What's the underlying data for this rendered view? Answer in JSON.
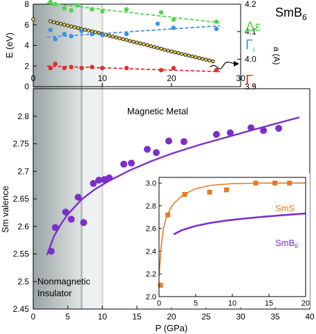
{
  "colors": {
    "green": "#4fd64a",
    "blue": "#3e8fe6",
    "red": "#e62a2a",
    "black_points": "#222222",
    "lattice_fill": "#f0d44a",
    "purple": "#7b2fc9",
    "orange": "#e57a24",
    "shade_dark": "#9aa4a4",
    "shade_light": "#eef1f1"
  },
  "chart_data": [
    {
      "id": "top",
      "type": "scatter",
      "title": "SmB6",
      "title_main": "SmB",
      "title_sub": "6",
      "xlim": [
        0,
        30
      ],
      "xticks": [
        "0",
        "10",
        "20",
        "30"
      ],
      "ylim": [
        0,
        8
      ],
      "yticks": [
        "0",
        "2",
        "4",
        "6",
        "8"
      ],
      "ylabel": "E (eV)",
      "y2lim": [
        3.9,
        4.2
      ],
      "y2ticks": [
        "3.9",
        "4.0",
        "4.1",
        "4.2"
      ],
      "y2label": "a (A)",
      "series": [
        {
          "name": "Δε",
          "label_main": "Δε",
          "label_sub": "",
          "color": "green",
          "x": [
            2.5,
            3.2,
            4.5,
            5.5,
            6.5,
            8.5,
            10,
            13.5,
            18.5,
            20.3,
            26.5
          ],
          "y": [
            8.2,
            8.0,
            7.6,
            7.4,
            7.9,
            7.5,
            7.3,
            7.5,
            7.2,
            6.5,
            6.3
          ],
          "fit": [
            [
              2,
              8.1
            ],
            [
              27,
              6.2
            ]
          ]
        },
        {
          "name": "Γi",
          "label_main": "Γ",
          "label_sub": "i",
          "color": "blue",
          "x": [
            2.5,
            3.2,
            4.5,
            5.5,
            7,
            8.5,
            10,
            13.5,
            18,
            20.3,
            26.5
          ],
          "y": [
            5.5,
            4.6,
            5.1,
            4.9,
            5.4,
            5.1,
            5.0,
            5.1,
            6.1,
            5.7,
            5.6
          ],
          "fit": [
            [
              2,
              4.8
            ],
            [
              27,
              5.9
            ]
          ]
        },
        {
          "name": "Γt",
          "label_main": "Γ",
          "label_sub": "t",
          "color": "red",
          "x": [
            2.5,
            3.2,
            4.5,
            5.5,
            7,
            8.5,
            10,
            13.5,
            18.5,
            20.3,
            26.5
          ],
          "y": [
            1.8,
            2.2,
            1.8,
            1.9,
            1.8,
            1.9,
            1.8,
            1.8,
            1.6,
            1.8,
            1.6
          ],
          "fit": [
            [
              2,
              2.0
            ],
            [
              27,
              1.45
            ]
          ]
        }
      ],
      "lattice": {
        "name": "a (A)",
        "axis": "right",
        "color": "black_points",
        "x": [
          0,
          2.5,
          3,
          3.5,
          4,
          4.5,
          5,
          5.5,
          6,
          6.5,
          7,
          7.5,
          8,
          8.5,
          9,
          9.5,
          10,
          10.5,
          11,
          11.5,
          12,
          12.5,
          13,
          13.5,
          14,
          14.5,
          15,
          15.5,
          16,
          16.5,
          17,
          17.5,
          18,
          18.5,
          19,
          19.5,
          20,
          20.5,
          21,
          21.5,
          22,
          22.5,
          23,
          23.5,
          24,
          24.5,
          25,
          25.5,
          26
        ],
        "y": [
          4.145,
          4.138,
          4.134,
          4.131,
          4.128,
          4.125,
          4.122,
          4.119,
          4.116,
          4.113,
          4.11,
          4.107,
          4.104,
          4.101,
          4.098,
          4.095,
          4.092,
          4.089,
          4.085,
          4.082,
          4.079,
          4.076,
          4.073,
          4.07,
          4.066,
          4.063,
          4.06,
          4.057,
          4.054,
          4.051,
          4.047,
          4.044,
          4.041,
          4.038,
          4.034,
          4.031,
          4.028,
          4.025,
          4.022,
          4.019,
          4.016,
          4.013,
          4.01,
          4.007,
          4.004,
          4.001,
          3.998,
          3.995,
          3.992
        ]
      }
    },
    {
      "id": "main",
      "type": "scatter",
      "xlim": [
        0,
        40
      ],
      "xticks": [
        "0",
        "5",
        "10",
        "15",
        "20",
        "25",
        "30",
        "35",
        "40"
      ],
      "xlabel": "P (GPa)",
      "ylim": [
        2.45,
        2.85
      ],
      "yticks": [
        "2.45",
        "2.5",
        "2.55",
        "2.6",
        "2.65",
        "2.7",
        "2.75",
        "2.8"
      ],
      "ylabel": "Sm valence",
      "series": [
        {
          "name": "SmB6",
          "color": "purple",
          "x": [
            2.6,
            3.2,
            4.7,
            5.5,
            6.5,
            7.3,
            8.7,
            9.5,
            10.3,
            11.0,
            13.1,
            14.2,
            16.5,
            17.8,
            19.6,
            21.8,
            26.5,
            28.5,
            31.5,
            33.3,
            35.5
          ],
          "y": [
            2.555,
            2.598,
            2.626,
            2.613,
            2.653,
            2.607,
            2.678,
            2.684,
            2.685,
            2.688,
            2.713,
            2.715,
            2.74,
            2.734,
            2.755,
            2.754,
            2.767,
            2.77,
            2.779,
            2.774,
            2.778
          ],
          "fit": [
            [
              2,
              2.548
            ],
            [
              3,
              2.582
            ],
            [
              4,
              2.604
            ],
            [
              5,
              2.622
            ],
            [
              7,
              2.649
            ],
            [
              9,
              2.668
            ],
            [
              11,
              2.683
            ],
            [
              14,
              2.702
            ],
            [
              17,
              2.718
            ],
            [
              20,
              2.732
            ],
            [
              24,
              2.748
            ],
            [
              28,
              2.762
            ],
            [
              32,
              2.776
            ],
            [
              37,
              2.793
            ],
            [
              38.5,
              2.798
            ]
          ]
        }
      ],
      "regions": {
        "metal": "Magnetic Metal",
        "insulator_line1": "Nonmagnetic",
        "insulator_line2": "Insulator",
        "shade_end": 7,
        "transition_line": 10
      }
    },
    {
      "id": "inset",
      "type": "scatter",
      "xlim": [
        0,
        20
      ],
      "xticks": [
        "0",
        "5",
        "10",
        "15",
        "20"
      ],
      "ylim": [
        2.0,
        3.05
      ],
      "yticks": [
        "2.0",
        "2.2",
        "2.4",
        "2.6",
        "2.8",
        "3.0"
      ],
      "series": [
        {
          "name": "SmS",
          "label_main": "SmS",
          "label_sub": "",
          "color": "orange",
          "marker": "square",
          "x": [
            0.2,
            1.2,
            3.5,
            6.9,
            9.2,
            13.2,
            15.8,
            17.8
          ],
          "y": [
            2.1,
            2.72,
            2.9,
            2.92,
            2.94,
            3.0,
            3.0,
            3.0
          ],
          "fit": [
            [
              0,
              2.18
            ],
            [
              0.3,
              2.45
            ],
            [
              0.6,
              2.6
            ],
            [
              1,
              2.7
            ],
            [
              1.5,
              2.77
            ],
            [
              2,
              2.82
            ],
            [
              3,
              2.88
            ],
            [
              4,
              2.92
            ],
            [
              5,
              2.95
            ],
            [
              7,
              2.98
            ],
            [
              10,
              2.995
            ],
            [
              14,
              3.0
            ],
            [
              20,
              3.0
            ]
          ]
        },
        {
          "name": "SmB6",
          "label_main": "SmB",
          "label_sub": "6",
          "color": "purple",
          "x": [],
          "y": [],
          "fit": [
            [
              2,
              2.548
            ],
            [
              3,
              2.582
            ],
            [
              4,
              2.604
            ],
            [
              5,
              2.622
            ],
            [
              7,
              2.649
            ],
            [
              9,
              2.668
            ],
            [
              11,
              2.683
            ],
            [
              14,
              2.702
            ],
            [
              17,
              2.718
            ],
            [
              20,
              2.732
            ]
          ]
        }
      ]
    }
  ]
}
